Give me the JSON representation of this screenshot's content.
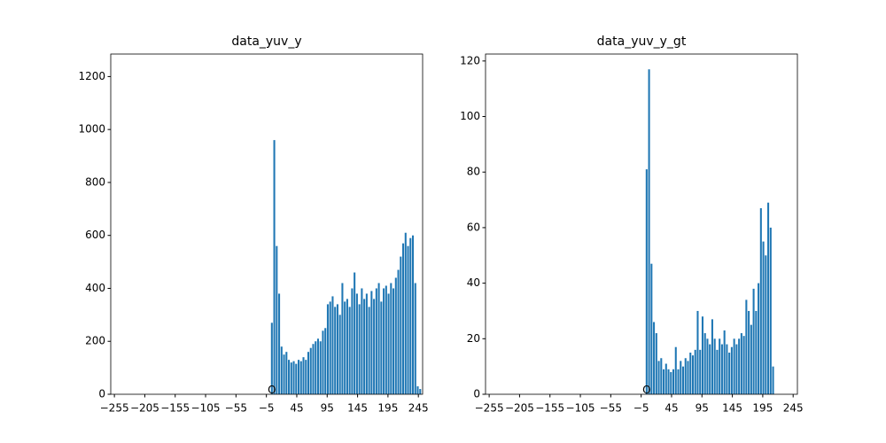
{
  "chart_data": [
    {
      "type": "bar",
      "title": "data_yuv_y",
      "color": "#1f77b4",
      "x": [
        4,
        8,
        12,
        16,
        20,
        24,
        28,
        32,
        36,
        40,
        44,
        48,
        52,
        56,
        60,
        64,
        68,
        72,
        76,
        80,
        84,
        88,
        92,
        96,
        100,
        104,
        108,
        112,
        116,
        120,
        124,
        128,
        132,
        136,
        140,
        144,
        148,
        152,
        156,
        160,
        164,
        168,
        172,
        176,
        180,
        184,
        188,
        192,
        196,
        200,
        204,
        208,
        212,
        216,
        220,
        224,
        228,
        232,
        236,
        240,
        244,
        248
      ],
      "values": [
        270,
        960,
        560,
        380,
        180,
        150,
        160,
        130,
        120,
        125,
        115,
        130,
        125,
        140,
        130,
        160,
        175,
        190,
        200,
        210,
        200,
        240,
        250,
        340,
        350,
        370,
        330,
        340,
        300,
        420,
        350,
        360,
        330,
        400,
        460,
        380,
        340,
        400,
        360,
        380,
        330,
        390,
        360,
        400,
        420,
        350,
        400,
        410,
        380,
        420,
        400,
        440,
        470,
        520,
        570,
        610,
        560,
        590,
        600,
        420,
        30,
        20
      ],
      "xlim": [
        -261,
        252
      ],
      "ylim": [
        0,
        1285
      ],
      "xticks": [
        {
          "value": -255,
          "label": "−255"
        },
        {
          "value": -205,
          "label": "−205"
        },
        {
          "value": -155,
          "label": "−155"
        },
        {
          "value": -105,
          "label": "−105"
        },
        {
          "value": -55,
          "label": "−55"
        },
        {
          "value": -5,
          "label": "−5"
        },
        45,
        95,
        145,
        195,
        245
      ],
      "yticks": [
        0,
        200,
        400,
        600,
        800,
        1000,
        1200
      ],
      "annotation": {
        "text": "O",
        "x": 4,
        "y": 15
      }
    },
    {
      "type": "bar",
      "title": "data_yuv_y_gt",
      "color": "#1f77b4",
      "x": [
        4,
        8,
        12,
        16,
        20,
        24,
        28,
        32,
        36,
        40,
        44,
        48,
        52,
        56,
        60,
        64,
        68,
        72,
        76,
        80,
        84,
        88,
        92,
        96,
        100,
        104,
        108,
        112,
        116,
        120,
        124,
        128,
        132,
        136,
        140,
        144,
        148,
        152,
        156,
        160,
        164,
        168,
        172,
        176,
        180,
        184,
        188,
        192,
        196,
        200,
        204,
        208,
        212
      ],
      "values": [
        81,
        117,
        47,
        26,
        22,
        12,
        13,
        9,
        11,
        9,
        8,
        9,
        17,
        9,
        12,
        10,
        13,
        12,
        15,
        14,
        16,
        30,
        16,
        28,
        22,
        20,
        18,
        27,
        20,
        16,
        20,
        18,
        23,
        18,
        15,
        17,
        20,
        18,
        20,
        22,
        21,
        34,
        30,
        25,
        38,
        30,
        40,
        67,
        55,
        50,
        69,
        60,
        10
      ],
      "xlim": [
        -261,
        252
      ],
      "ylim": [
        0,
        122.5
      ],
      "xticks": [
        {
          "value": -255,
          "label": "−255"
        },
        {
          "value": -205,
          "label": "−205"
        },
        {
          "value": -155,
          "label": "−155"
        },
        {
          "value": -105,
          "label": "−105"
        },
        {
          "value": -55,
          "label": "−55"
        },
        {
          "value": -5,
          "label": "−5"
        },
        45,
        95,
        145,
        195,
        245
      ],
      "yticks": [
        0,
        20,
        40,
        60,
        80,
        100,
        120
      ],
      "annotation": {
        "text": "O",
        "x": 4,
        "y": 1.5
      }
    }
  ]
}
